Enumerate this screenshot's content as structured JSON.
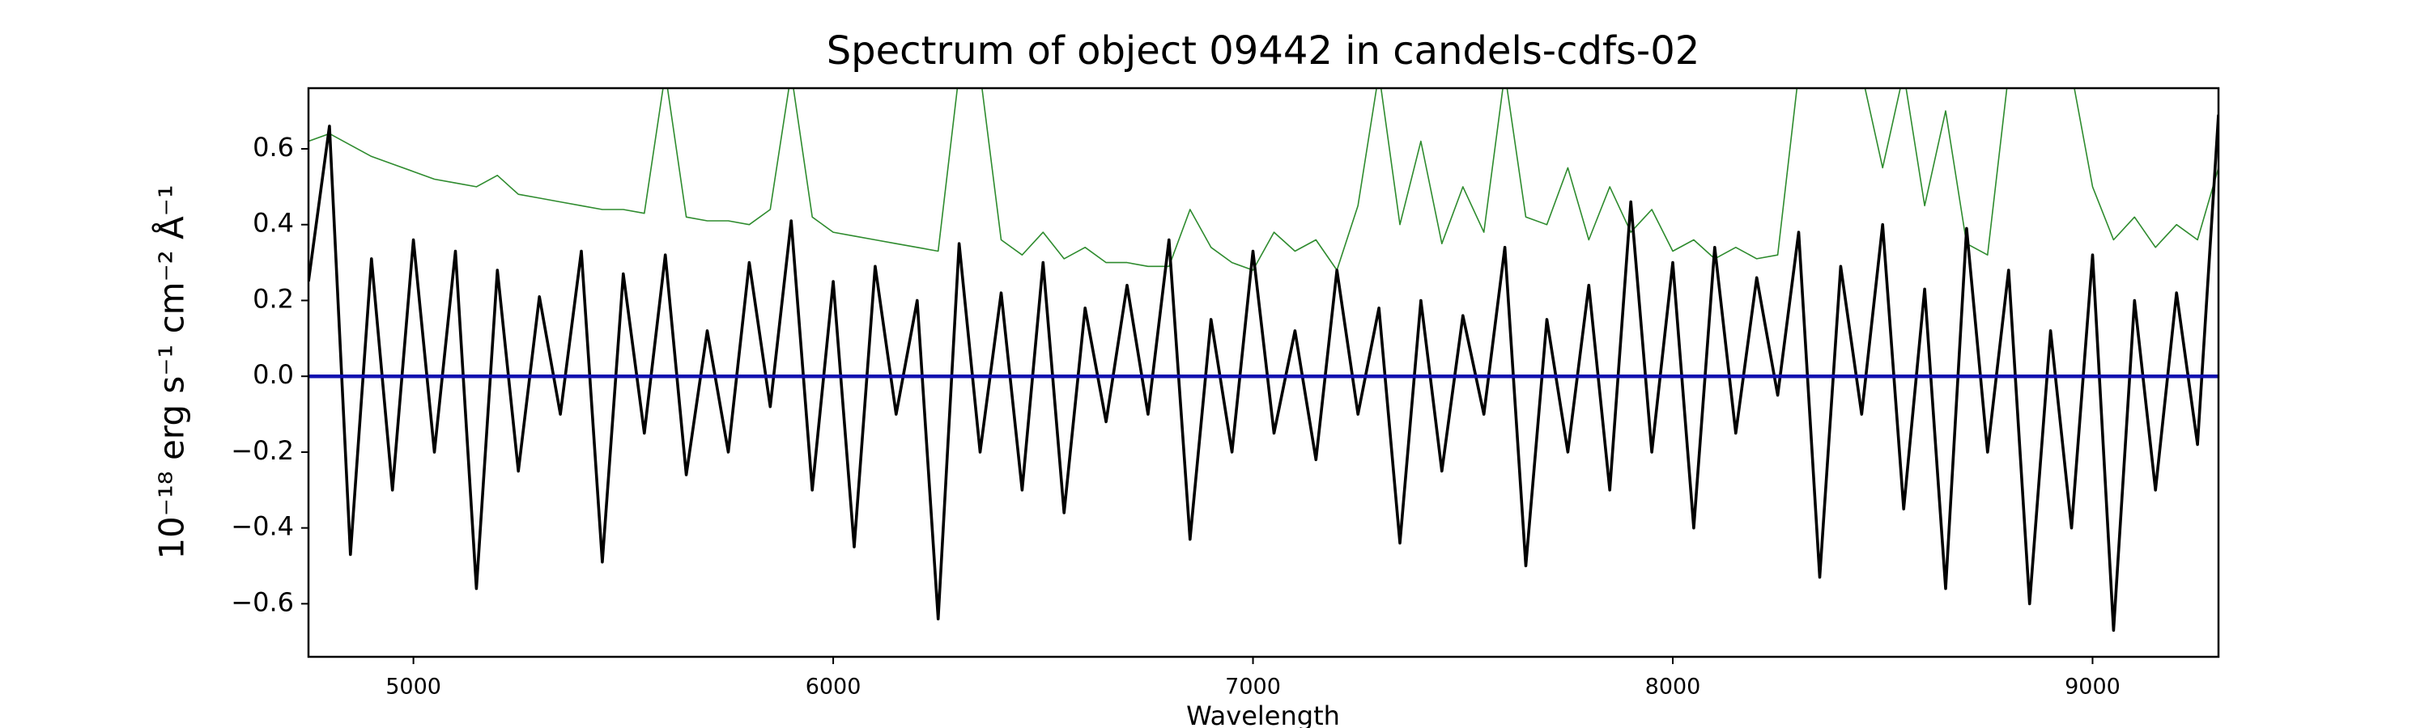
{
  "chart_data": {
    "type": "line",
    "title": "Spectrum of object 09442 in candels-cdfs-02",
    "xlabel": "Wavelength",
    "ylabel": "10⁻¹⁸ erg s⁻¹ cm⁻² Å⁻¹",
    "x": [
      4750,
      4800,
      4850,
      4900,
      4950,
      5000,
      5050,
      5100,
      5150,
      5200,
      5250,
      5300,
      5350,
      5400,
      5450,
      5500,
      5550,
      5600,
      5650,
      5700,
      5750,
      5800,
      5850,
      5900,
      5950,
      6000,
      6050,
      6100,
      6150,
      6200,
      6250,
      6300,
      6350,
      6400,
      6450,
      6500,
      6550,
      6600,
      6650,
      6700,
      6750,
      6800,
      6850,
      6900,
      6950,
      7000,
      7050,
      7100,
      7150,
      7200,
      7250,
      7300,
      7350,
      7400,
      7450,
      7500,
      7550,
      7600,
      7650,
      7700,
      7750,
      7800,
      7850,
      7900,
      7950,
      8000,
      8050,
      8100,
      8150,
      8200,
      8250,
      8300,
      8350,
      8400,
      8450,
      8500,
      8550,
      8600,
      8650,
      8700,
      8750,
      8800,
      8850,
      8900,
      8950,
      9000,
      9050,
      9100,
      9150,
      9200,
      9250,
      9300
    ],
    "series": [
      {
        "color": "#2e8b2e",
        "values": [
          0.62,
          0.64,
          0.61,
          0.58,
          0.56,
          0.54,
          0.52,
          0.51,
          0.5,
          0.53,
          0.48,
          0.47,
          0.46,
          0.45,
          0.44,
          0.44,
          0.43,
          0.8,
          0.42,
          0.41,
          0.41,
          0.4,
          0.44,
          0.8,
          0.42,
          0.38,
          0.37,
          0.36,
          0.35,
          0.34,
          0.33,
          0.8,
          0.8,
          0.36,
          0.32,
          0.38,
          0.31,
          0.34,
          0.3,
          0.3,
          0.29,
          0.29,
          0.44,
          0.34,
          0.3,
          0.28,
          0.38,
          0.33,
          0.36,
          0.28,
          0.45,
          0.8,
          0.4,
          0.62,
          0.35,
          0.5,
          0.38,
          0.8,
          0.42,
          0.4,
          0.55,
          0.36,
          0.5,
          0.38,
          0.44,
          0.33,
          0.36,
          0.31,
          0.34,
          0.31,
          0.32,
          0.8,
          0.8,
          0.8,
          0.8,
          0.55,
          0.8,
          0.45,
          0.7,
          0.35,
          0.32,
          0.8,
          0.8,
          0.8,
          0.8,
          0.5,
          0.36,
          0.42,
          0.34,
          0.4,
          0.36,
          0.55
        ]
      },
      {
        "color": "#000000",
        "values": [
          0.25,
          0.66,
          -0.47,
          0.31,
          -0.3,
          0.36,
          -0.2,
          0.33,
          -0.56,
          0.28,
          -0.25,
          0.21,
          -0.1,
          0.33,
          -0.49,
          0.27,
          -0.15,
          0.32,
          -0.26,
          0.12,
          -0.2,
          0.3,
          -0.08,
          0.41,
          -0.3,
          0.25,
          -0.45,
          0.29,
          -0.1,
          0.2,
          -0.64,
          0.35,
          -0.2,
          0.22,
          -0.3,
          0.3,
          -0.36,
          0.18,
          -0.12,
          0.24,
          -0.1,
          0.36,
          -0.43,
          0.15,
          -0.2,
          0.33,
          -0.15,
          0.12,
          -0.22,
          0.28,
          -0.1,
          0.18,
          -0.44,
          0.2,
          -0.25,
          0.16,
          -0.1,
          0.34,
          -0.5,
          0.15,
          -0.2,
          0.24,
          -0.3,
          0.46,
          -0.2,
          0.3,
          -0.4,
          0.34,
          -0.15,
          0.26,
          -0.05,
          0.38,
          -0.53,
          0.29,
          -0.1,
          0.4,
          -0.35,
          0.23,
          -0.56,
          0.39,
          -0.2,
          0.28,
          -0.6,
          0.12,
          -0.4,
          0.32,
          -0.67,
          0.2,
          -0.3,
          0.22,
          -0.18,
          0.69
        ]
      },
      {
        "color": "#1010b0",
        "x": [
          4750,
          9300
        ],
        "values": [
          0,
          0
        ]
      }
    ],
    "xlim": [
      4750,
      9300
    ],
    "ylim": [
      -0.74,
      0.76
    ],
    "xticks": [
      5000,
      6000,
      7000,
      8000,
      9000
    ],
    "yticks": [
      {
        "value": -0.6,
        "label": "−0.6"
      },
      {
        "value": -0.4,
        "label": "−0.4"
      },
      {
        "value": -0.2,
        "label": "−0.2"
      },
      {
        "value": 0,
        "label": "0.0"
      },
      0.2,
      0.4,
      0.6
    ],
    "grid": false
  }
}
